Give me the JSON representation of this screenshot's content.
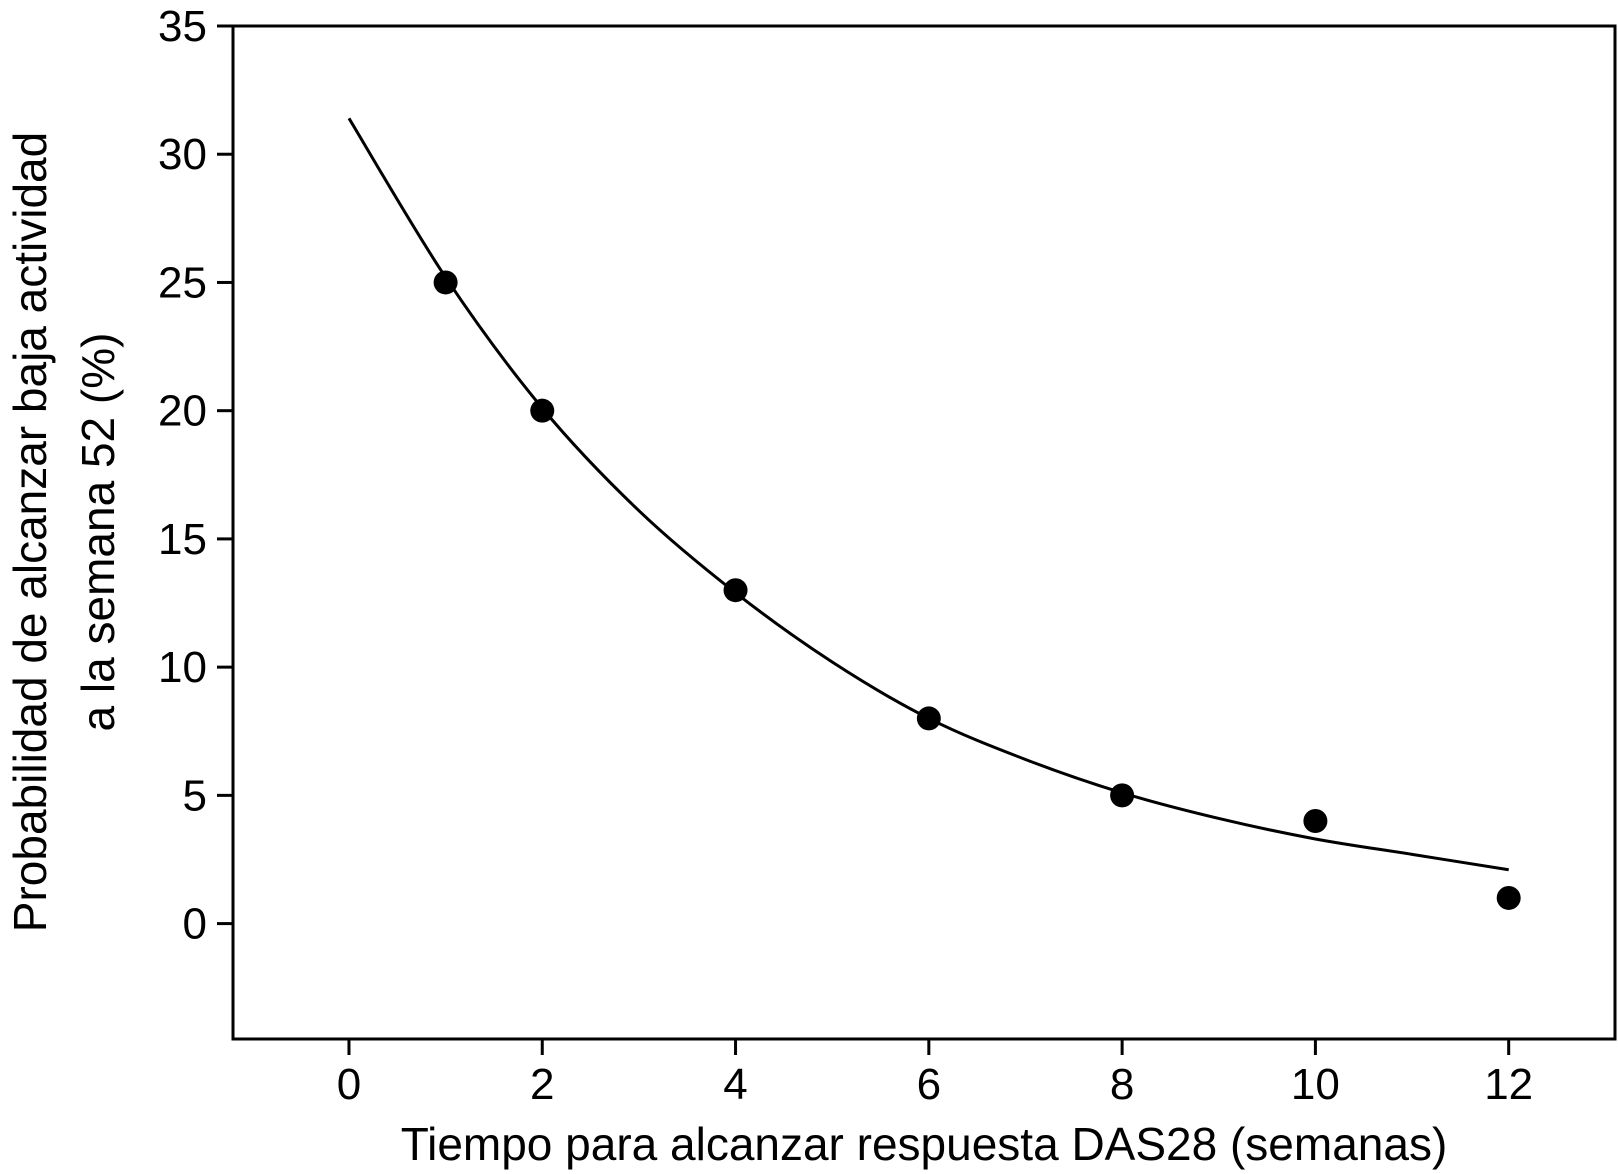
{
  "chart_data": {
    "type": "scatter",
    "title": "",
    "xlabel": "Tiempo para alcanzar respuesta DAS28 (semanas)",
    "ylabel_lines": [
      "Probabilidad de alcanzar baja actividad",
      "a la semana 52 (%)"
    ],
    "xlim": [
      -1.2,
      13.1
    ],
    "ylim": [
      -4.5,
      35
    ],
    "xticks": [
      0,
      2,
      4,
      6,
      8,
      10,
      12
    ],
    "xtick_labels": [
      "0",
      "2",
      "4",
      "6",
      "8",
      "10",
      "12"
    ],
    "yticks": [
      0,
      5,
      10,
      15,
      20,
      25,
      30,
      35
    ],
    "ytick_labels": [
      "0",
      "5",
      "10",
      "15",
      "20",
      "25",
      "30",
      "35"
    ],
    "grid": false,
    "legend": "none",
    "series": [
      {
        "kind": "points",
        "color": "#000000",
        "x": [
          1,
          2,
          4,
          6,
          8,
          10,
          12
        ],
        "y": [
          25,
          20,
          13,
          8,
          5,
          4,
          1
        ]
      },
      {
        "kind": "fitted-curve",
        "color": "#000000",
        "x": [
          0,
          1,
          2,
          3,
          4,
          5,
          6,
          7,
          8,
          9,
          10,
          11,
          12
        ],
        "y": [
          31.4,
          25.2,
          20.1,
          16.1,
          12.9,
          10.2,
          8.0,
          6.4,
          5.1,
          4.1,
          3.3,
          2.7,
          2.1
        ]
      }
    ]
  }
}
